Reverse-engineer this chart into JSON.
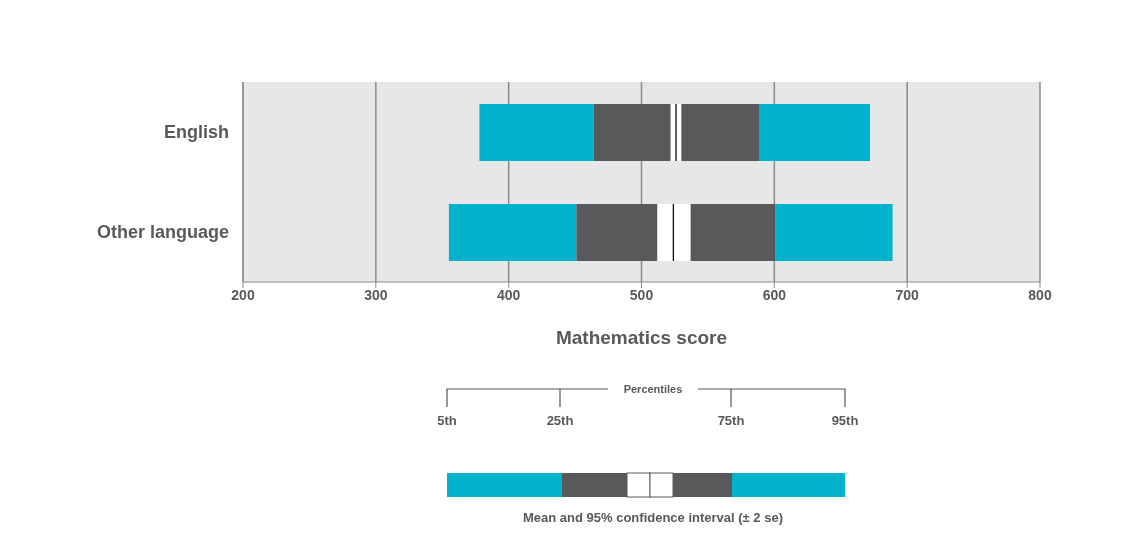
{
  "chart_data": {
    "type": "bar",
    "orientation": "horizontal",
    "xlabel": "Mathematics score",
    "categories": [
      "English",
      "Other language"
    ],
    "series": [
      {
        "color": "#00b3cb",
        "base": [
          378,
          355
        ],
        "values": [
          86,
          96
        ]
      },
      {
        "color": "#58595b",
        "base": [
          464,
          451
        ],
        "values": [
          58,
          61
        ]
      },
      {
        "color": "#ffffff",
        "base": [
          522,
          512
        ],
        "values": [
          4,
          12
        ]
      },
      {
        "color": "#ffffff",
        "base": [
          526,
          524
        ],
        "values": [
          4,
          13
        ]
      },
      {
        "color": "#58595b",
        "base": [
          530,
          537
        ],
        "values": [
          59,
          64
        ]
      },
      {
        "color": "#00b3cb",
        "base": [
          589,
          601
        ],
        "values": [
          83,
          88
        ]
      },
      {
        "color": "#111111",
        "base": [
          525.5,
          523.5
        ],
        "values": [
          1,
          1
        ]
      }
    ],
    "xlim": [
      200,
      800
    ],
    "xticks": [
      200,
      300,
      400,
      500,
      600,
      700,
      800
    ],
    "grid": "x",
    "legend": false,
    "annotations": [
      "Percentiles",
      "5th",
      "25th",
      "75th",
      "95th",
      "Mean and 95% confidence interval (± 2 se)"
    ]
  }
}
